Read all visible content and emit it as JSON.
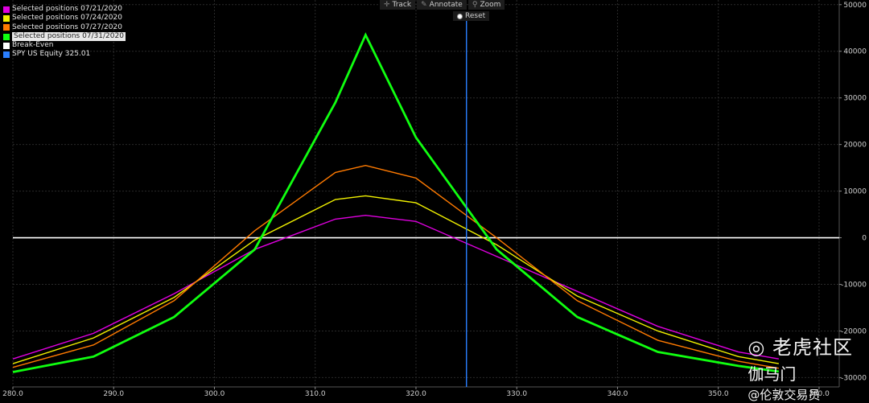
{
  "chart_data": {
    "type": "line",
    "title": "",
    "xlabel": "",
    "ylabel": "",
    "xlim": [
      280,
      362
    ],
    "ylim": [
      -32000,
      51000
    ],
    "x_ticks": [
      280,
      290,
      300,
      310,
      320,
      330,
      340,
      350,
      360
    ],
    "x_tick_labels": [
      "280.0",
      "290.0",
      "300.0",
      "310.0",
      "320.0",
      "330.0",
      "340.0",
      "350.0",
      "360.0"
    ],
    "y_ticks": [
      50000,
      40000,
      30000,
      20000,
      10000,
      0,
      -10000,
      -20000,
      -30000
    ],
    "y_tick_labels": [
      "50000",
      "40000",
      "30000",
      "20000",
      "10000",
      "0",
      "-10000",
      "-20000",
      "-30000"
    ],
    "grid": true,
    "legend_position": "top-left",
    "x": [
      280,
      288,
      296,
      304,
      312,
      315,
      320,
      328,
      336,
      344,
      352,
      356
    ],
    "series": [
      {
        "name": "Selected positions 07/21/2020",
        "color": "#e000e0",
        "values": [
          -26000,
          -20500,
          -12000,
          -2500,
          4000,
          4800,
          3500,
          -4000,
          -11500,
          -19000,
          -24500,
          -26000
        ]
      },
      {
        "name": "Selected positions 07/24/2020",
        "color": "#f0f000",
        "values": [
          -27000,
          -21500,
          -12800,
          -500,
          8200,
          9000,
          7500,
          -1500,
          -12500,
          -20000,
          -25500,
          -27000
        ]
      },
      {
        "name": "Selected positions 07/27/2020",
        "color": "#ff7a00",
        "values": [
          -27800,
          -23000,
          -13500,
          1500,
          14000,
          15500,
          12800,
          0,
          -13500,
          -22000,
          -26500,
          -28000
        ]
      },
      {
        "name": "Selected positions 07/31/2020",
        "color": "#10ff10",
        "values": [
          -28800,
          -25500,
          -17000,
          -2500,
          29000,
          43500,
          21500,
          -2500,
          -17000,
          -24500,
          -27500,
          -28700
        ]
      }
    ],
    "break_even": {
      "name": "Break-Even",
      "color": "#ffffff",
      "value": 0
    },
    "marker": {
      "name": "SPY US Equity 325.01",
      "color": "#2a7fff",
      "x": 325.01
    }
  },
  "legend": {
    "selected_index": 3,
    "items": [
      {
        "label": "Selected positions 07/21/2020",
        "color": "#e000e0"
      },
      {
        "label": "Selected positions 07/24/2020",
        "color": "#f0f000"
      },
      {
        "label": "Selected positions 07/27/2020",
        "color": "#ff7a00"
      },
      {
        "label": "Selected positions 07/31/2020",
        "color": "#10ff10"
      },
      {
        "label": "Break-Even",
        "color": "#ffffff"
      },
      {
        "label": "SPY US Equity 325.01",
        "color": "#2a7fff"
      }
    ]
  },
  "toolbar": {
    "track_label": "Track",
    "track_icon": "crosshair-icon",
    "annotate_label": "Annotate",
    "annotate_icon": "pencil-icon",
    "zoom_label": "Zoom",
    "zoom_icon": "magnifier-icon",
    "reset_label": "Reset",
    "reset_icon": "radio-icon"
  },
  "watermark": {
    "line1": "老虎社区",
    "line2": "伽马门",
    "line3": "@伦敦交易员",
    "icon": "wechat-icon"
  }
}
